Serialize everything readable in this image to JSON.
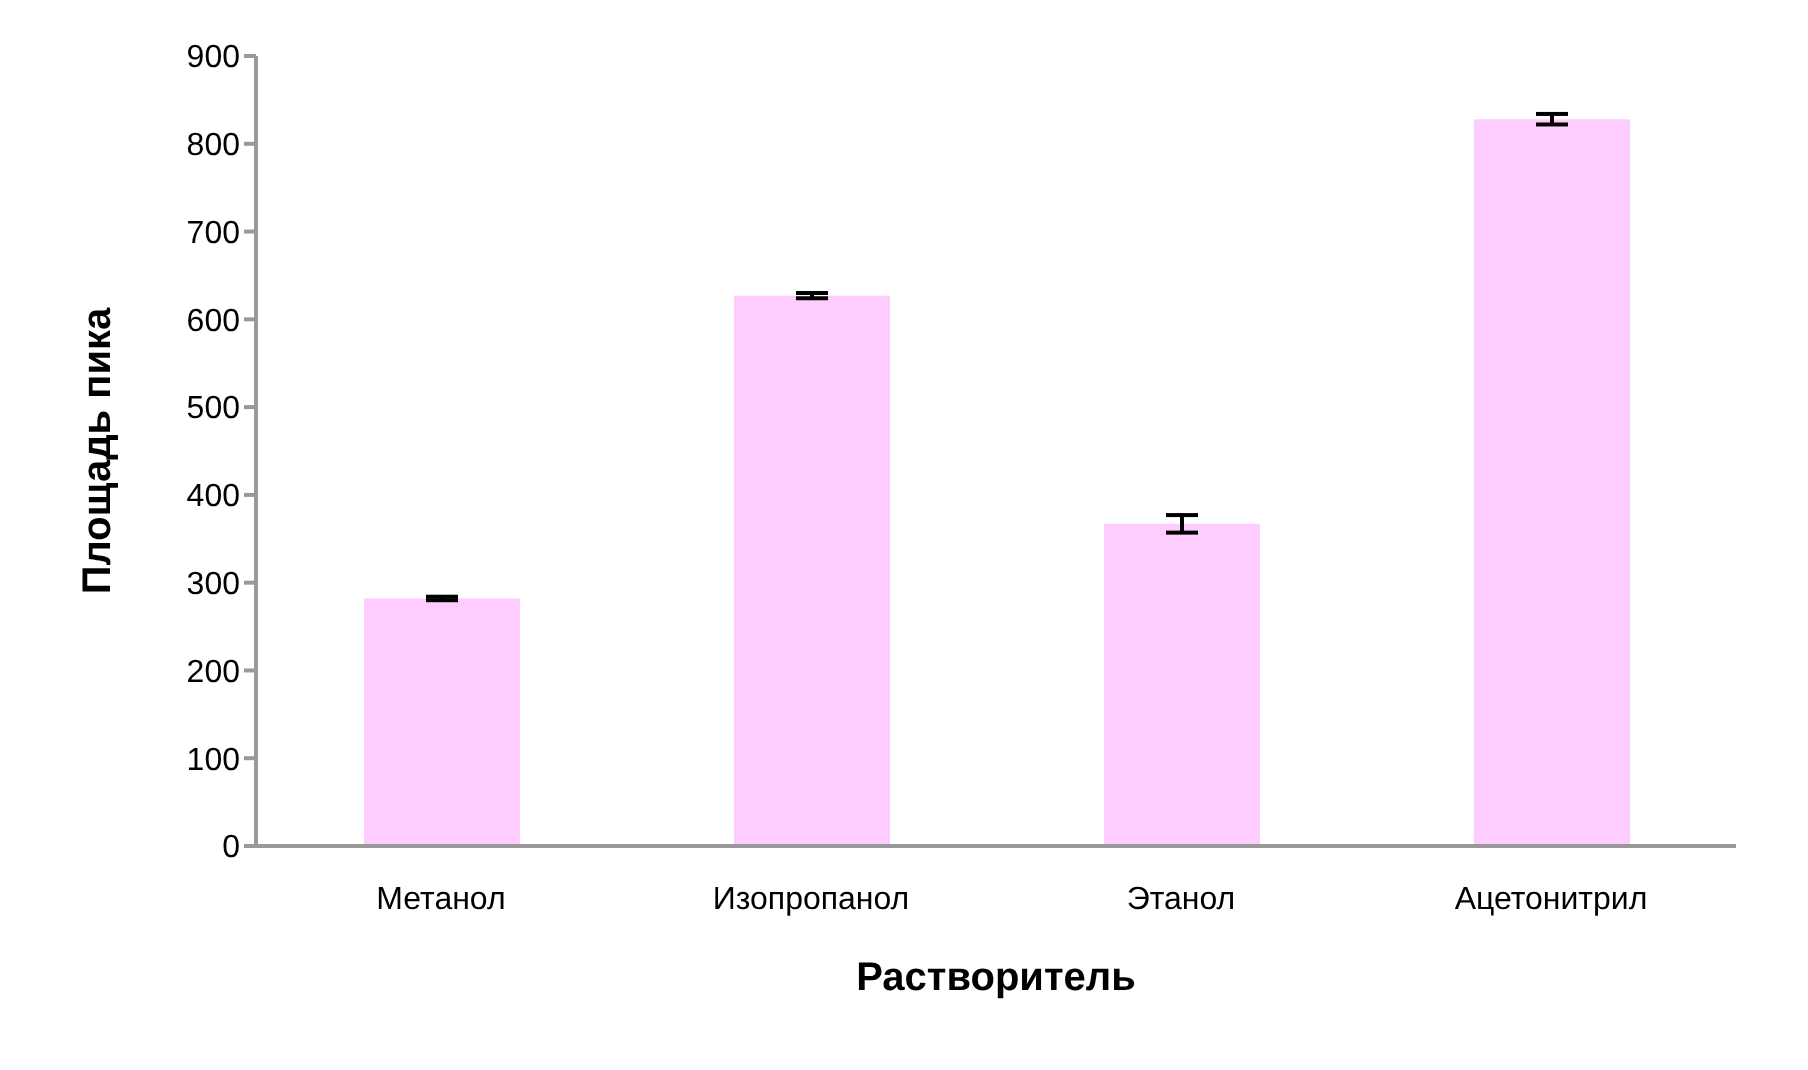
{
  "chart_data": {
    "type": "bar",
    "xlabel": "Растворитель",
    "ylabel": "Площадь пика",
    "categories": [
      "Метанол",
      "Изопропанол",
      "Этанол",
      "Ацетонитрил"
    ],
    "values": [
      282,
      627,
      367,
      828
    ],
    "errors": [
      2,
      3,
      10,
      6
    ],
    "color": "#ffccff",
    "ylim": [
      0,
      900
    ],
    "yticks": [
      0,
      100,
      200,
      300,
      400,
      500,
      600,
      700,
      800,
      900
    ],
    "grid": false,
    "legend": false
  }
}
